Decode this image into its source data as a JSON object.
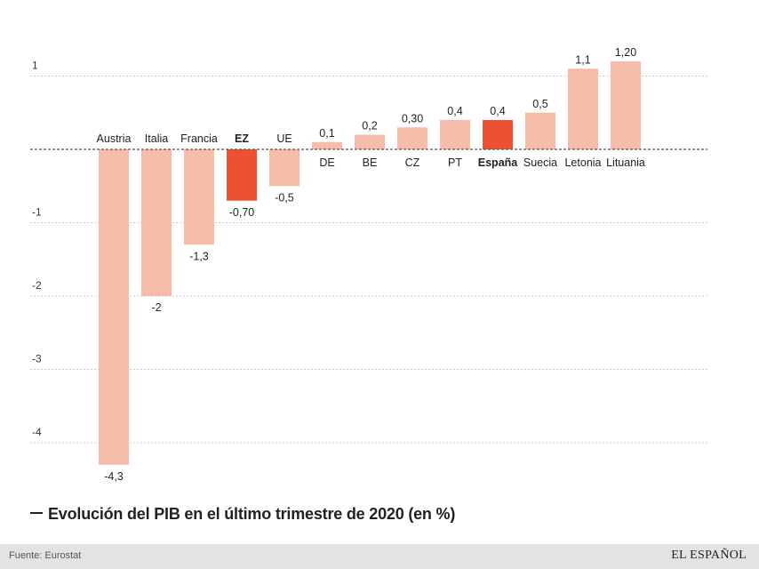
{
  "chart_data": {
    "type": "bar",
    "title": "Evolución del PIB en el último trimestre de 2020 (en %)",
    "categories": [
      "Austria",
      "Italia",
      "Francia",
      "EZ",
      "UE",
      "DE",
      "BE",
      "CZ",
      "PT",
      "España",
      "Suecia",
      "Letonia",
      "Lituania"
    ],
    "values": [
      -4.3,
      -2,
      -1.3,
      -0.7,
      -0.5,
      0.1,
      0.2,
      0.3,
      0.4,
      0.4,
      0.5,
      1.1,
      1.2
    ],
    "value_labels": [
      "-4,3",
      "-2",
      "-1,3",
      "-0,70",
      "-0,5",
      "0,1",
      "0,2",
      "0,30",
      "0,4",
      "0,4",
      "0,5",
      "1,1",
      "1,20"
    ],
    "highlighted": [
      "EZ",
      "España"
    ],
    "ylim": [
      -4.3,
      1.2
    ],
    "yticks": [
      1,
      -1,
      -2,
      -3,
      -4
    ],
    "ytick_labels": [
      "1",
      "-1",
      "-2",
      "-3",
      "-4"
    ],
    "grid": true,
    "xlabel": "",
    "ylabel": "",
    "colors": {
      "bar": "#f5bca9",
      "highlight": "#ec5232",
      "grid": "#cccccc",
      "zero_line": "#555555"
    }
  },
  "footer": {
    "source": "Fuente: Eurostat",
    "logo": "EL ESPAÑOL"
  }
}
